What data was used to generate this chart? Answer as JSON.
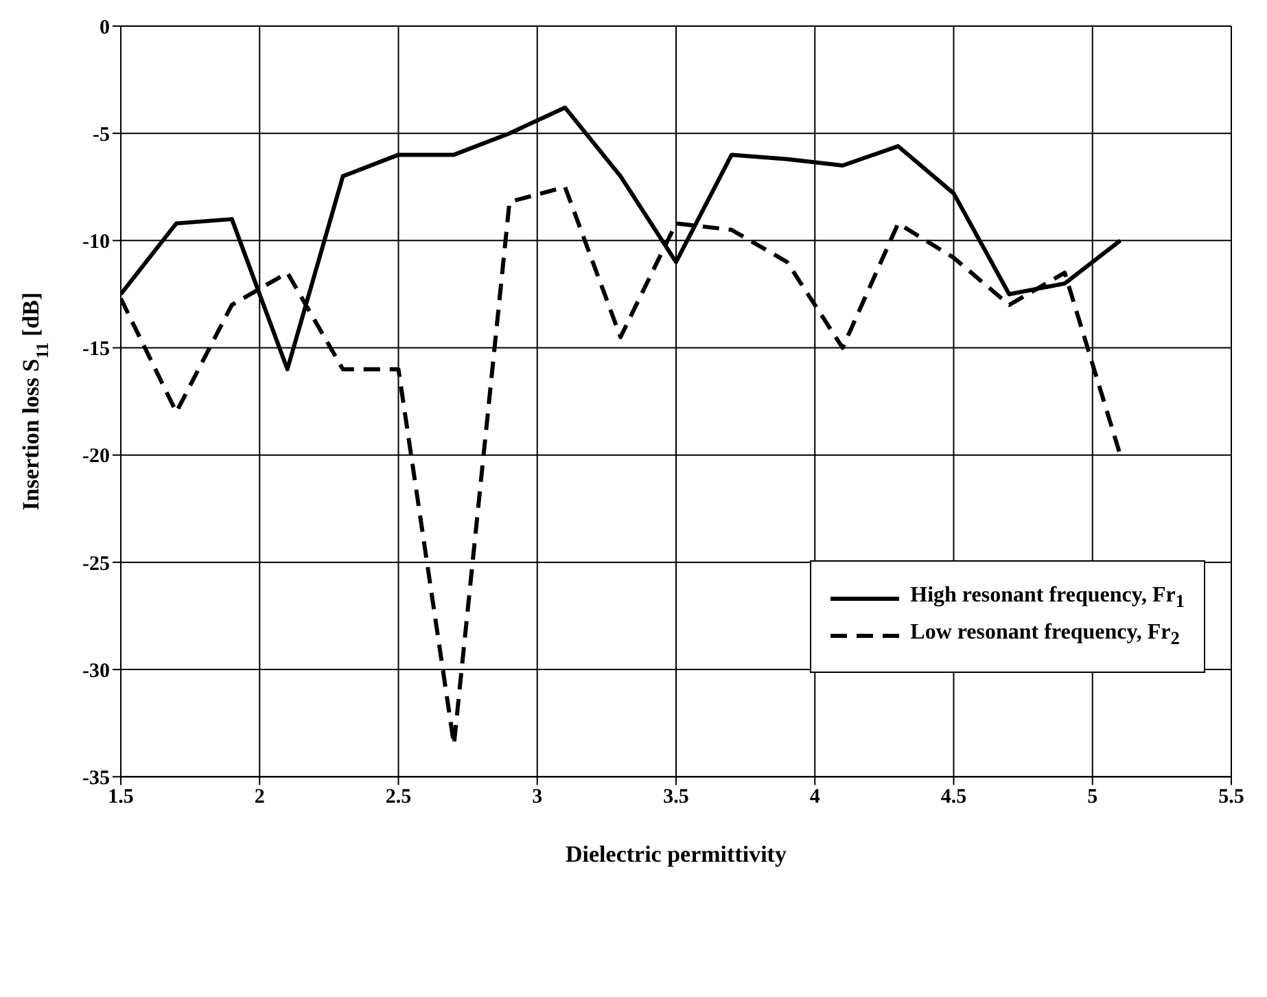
{
  "chart_data": {
    "type": "line",
    "xlabel": "Dielectric permittivity",
    "ylabel": "Insertion loss S$_{11}$ [dB]",
    "x": [
      1.5,
      1.7,
      1.9,
      2.1,
      2.3,
      2.5,
      2.7,
      2.9,
      3.1,
      3.3,
      3.5,
      3.7,
      3.9,
      4.1,
      4.3,
      4.5,
      4.7,
      4.9,
      5.1
    ],
    "series": [
      {
        "name": "High resonant frequency, Fr$_{1}$",
        "color": "#000000",
        "line_style": "solid",
        "values": [
          -12.5,
          -9.2,
          -9,
          -16,
          -7,
          -6,
          -6,
          -5,
          -3.8,
          -7,
          -11,
          -6,
          -6.2,
          -6.5,
          -5.6,
          -7.8,
          -12.5,
          -12,
          -10
        ]
      },
      {
        "name": "Low resonant frequency, Fr$_{2}$",
        "color": "#000000",
        "line_style": "dashed",
        "values": [
          -12.7,
          -18,
          -13,
          -11.5,
          -16,
          -16,
          -33.5,
          -8.2,
          -7.5,
          -14.5,
          -9.2,
          -9.5,
          -11,
          -15,
          -9.2,
          -10.8,
          -13,
          -11.5,
          -20
        ]
      }
    ],
    "xlim": [
      1.5,
      5.5
    ],
    "xticks": [
      1.5,
      2,
      2.5,
      3,
      3.5,
      4,
      4.5,
      5,
      5.5
    ],
    "ylim": [
      -35,
      0
    ],
    "yticks": [
      -35,
      -30,
      -25,
      -20,
      -15,
      -10,
      -5,
      0
    ],
    "grid": true,
    "legend": "right",
    "marker": "none"
  }
}
